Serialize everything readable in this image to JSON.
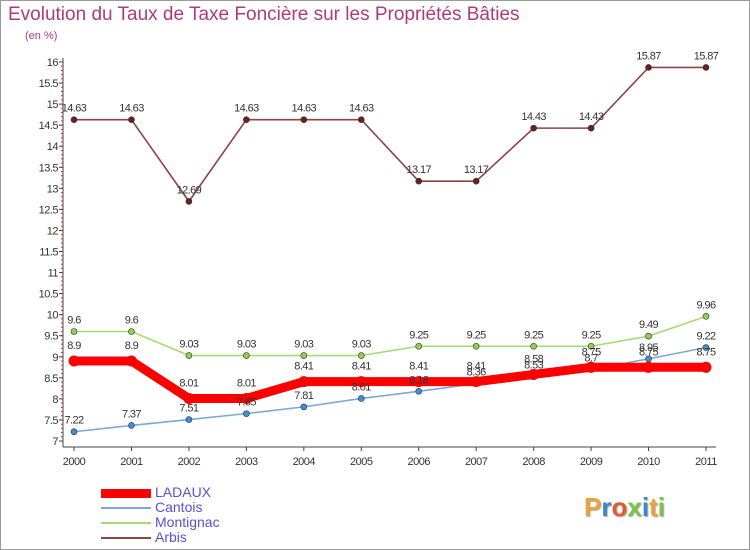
{
  "title": "Evolution du Taux de Taxe Foncière sur les Propriétés Bâties",
  "unit": "(en %)",
  "logo": {
    "text": "Proxiti",
    "colors": [
      "#e8a33a",
      "#3b86c8",
      "#e25a2d",
      "#7dc242",
      "#3b86c8",
      "#e8a33a",
      "#7dc242"
    ]
  },
  "chart_data": {
    "type": "line",
    "title": "Evolution du Taux de Taxe Foncière sur les Propriétés Bâties",
    "ylabel": "(en %)",
    "xlabel": "",
    "grid": false,
    "legend_position": "bottom-left",
    "categories": [
      "2000",
      "2001",
      "2002",
      "2003",
      "2004",
      "2005",
      "2006",
      "2007",
      "2008",
      "2009",
      "2010",
      "2011"
    ],
    "ylim": [
      7,
      16
    ],
    "yticks": [
      "7",
      "7.5",
      "8",
      "8.5",
      "9",
      "9.5",
      "10",
      "10.5",
      "11",
      "11.5",
      "12",
      "12.5",
      "13",
      "13.5",
      "14",
      "14.5",
      "15",
      "15.5",
      "16"
    ],
    "series": [
      {
        "name": "Arbis",
        "color": "#6e1e1e",
        "lineColor": "#8b4545",
        "thick": false,
        "values": [
          14.63,
          14.63,
          12.69,
          14.63,
          14.63,
          14.63,
          13.17,
          13.17,
          14.43,
          14.43,
          15.87,
          15.87
        ],
        "labels": [
          "14.63",
          "14.63",
          "12.69",
          "14.63",
          "14.63",
          "14.63",
          "13.17",
          "13.17",
          "14.43",
          "14.43",
          "15.87",
          "15.87"
        ]
      },
      {
        "name": "Montignac",
        "color": "#8fd14f",
        "lineColor": "#a6db74",
        "thick": false,
        "values": [
          9.6,
          9.6,
          9.03,
          9.03,
          9.03,
          9.03,
          9.25,
          9.25,
          9.25,
          9.25,
          9.49,
          9.96
        ],
        "labels": [
          "9.6",
          "9.6",
          "9.03",
          "9.03",
          "9.03",
          "9.03",
          "9.25",
          "9.25",
          "9.25",
          "9.25",
          "9.49",
          "9.96"
        ]
      },
      {
        "name": "Cantois",
        "color": "#3a8fd6",
        "lineColor": "#7ba9d6",
        "thick": false,
        "values": [
          7.22,
          7.37,
          7.51,
          7.65,
          7.81,
          8.01,
          8.18,
          8.36,
          8.53,
          8.7,
          8.95,
          9.22
        ],
        "labels": [
          "7.22",
          "7.37",
          "7.51",
          "7.65",
          "7.81",
          "8.01",
          "8.18",
          "8.36",
          "8.53",
          "8.7",
          "8.95",
          "9.22"
        ]
      },
      {
        "name": "LADAUX",
        "color": "#ff0000",
        "lineColor": "#ff0000",
        "thick": true,
        "values": [
          8.9,
          8.9,
          8.01,
          8.01,
          8.41,
          8.41,
          8.41,
          8.41,
          8.58,
          8.75,
          8.75,
          8.75
        ],
        "labels": [
          "8.9",
          "8.9",
          "8.01",
          "8.01",
          "8.41",
          "8.41",
          "8.41",
          "8.41",
          "8.58",
          "8.75",
          "8.75",
          "8.75"
        ]
      }
    ]
  },
  "legend": [
    {
      "name": "LADAUX",
      "color": "#ff0000",
      "textColor": "#5b4fd6",
      "thick": true
    },
    {
      "name": "Cantois",
      "color": "#7ba9d6",
      "textColor": "#5b4fd6",
      "thick": false
    },
    {
      "name": "Montignac",
      "color": "#a6db74",
      "textColor": "#5b4fd6",
      "thick": false
    },
    {
      "name": "Arbis",
      "color": "#8b4545",
      "textColor": "#5b4fd6",
      "thick": false
    }
  ]
}
